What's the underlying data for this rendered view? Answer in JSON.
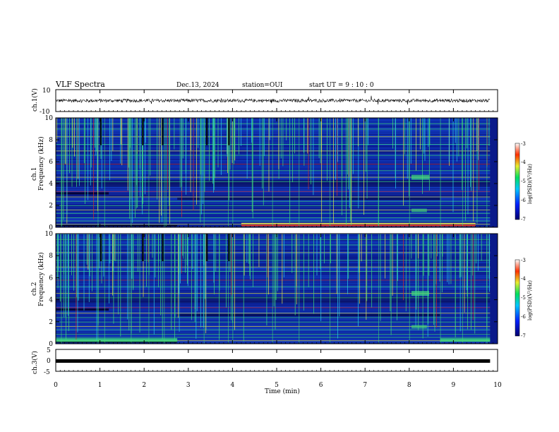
{
  "header": {
    "title": "VLF Spectra",
    "date": "Dec.13, 2024",
    "station": "station=OUI",
    "start": "start  UT =   9 : 10 : 0"
  },
  "colors": {
    "background": "#000080",
    "low": "#0a1f8f",
    "mid": "#1a6de0",
    "high_green": "#3fe07a",
    "yellow": "#e8e84a",
    "red": "#d2302a",
    "trace": "#000000"
  },
  "chart_data": [
    {
      "type": "line",
      "panel": "ch1-waveform",
      "ylabel": "ch.1(V)",
      "ylim": [
        -10,
        10
      ],
      "y_tick_labels": [
        "10",
        "-10"
      ],
      "xlim": [
        0,
        10
      ],
      "description_values": {
        "mean": 0,
        "amplitude_approx": 1.5
      }
    },
    {
      "type": "heatmap",
      "panel": "ch1-spectrogram",
      "ylabel_top": "ch.1",
      "ylabel": "Frequency  (kHz)",
      "ylim": [
        0,
        10
      ],
      "y_ticks": [
        0,
        2,
        4,
        6,
        8,
        10
      ],
      "y_tick_labels": [
        "0",
        "2",
        "4",
        "6",
        "8",
        "10"
      ],
      "xlim": [
        0,
        10
      ],
      "colorbar": {
        "label": "log(PSD)(V²/Hz)",
        "range": [
          -7,
          -3
        ],
        "ticks": [
          "-3",
          "-4",
          "-5",
          "-6",
          "-7"
        ]
      }
    },
    {
      "type": "heatmap",
      "panel": "ch2-spectrogram",
      "ylabel_top": "ch.2",
      "ylabel": "Frequency  (kHz)",
      "ylim": [
        0,
        10
      ],
      "y_ticks": [
        0,
        2,
        4,
        6,
        8,
        10
      ],
      "y_tick_labels": [
        "0",
        "2",
        "4",
        "6",
        "8",
        "10"
      ],
      "xlim": [
        0,
        10
      ],
      "colorbar": {
        "label": "log(PSD)(V²/Hz)",
        "range": [
          -7,
          -3
        ],
        "ticks": [
          "-3",
          "-4",
          "-5",
          "-6",
          "-7"
        ]
      }
    },
    {
      "type": "line",
      "panel": "ch3-waveform",
      "ylabel": "ch.3(V)",
      "ylim": [
        -5,
        5
      ],
      "y_tick_labels": [
        "5",
        "0",
        "-5"
      ],
      "xlim": [
        0,
        10
      ],
      "description_values": {
        "mean": -0.3,
        "amplitude_approx": 0.2
      }
    }
  ],
  "x_axis": {
    "label": "Time  (min)",
    "ticks": [
      0,
      1,
      2,
      3,
      4,
      5,
      6,
      7,
      8,
      9,
      10
    ],
    "tick_labels": [
      "0",
      "1",
      "2",
      "3",
      "4",
      "5",
      "6",
      "7",
      "8",
      "9",
      "10"
    ]
  }
}
